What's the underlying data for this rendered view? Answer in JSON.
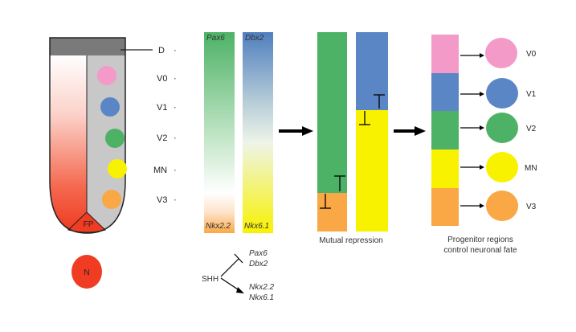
{
  "tube": {
    "labels": [
      "D",
      "V0",
      "V1",
      "V2",
      "MN",
      "V3"
    ],
    "floor_plate": "FP",
    "notochord": "N"
  },
  "gradient_bars": {
    "left_top": "Pax6",
    "left_bottom": "Nkx2.2",
    "right_top": "Dbx2",
    "right_bottom": "Nkx6.1"
  },
  "mutual_repression_caption": "Mutual repression",
  "shh": {
    "source": "SHH",
    "repressed": [
      "Pax6",
      "Dbx2"
    ],
    "induced": [
      "Nkx2.2",
      "Nkx6.1"
    ]
  },
  "progenitor": {
    "caption_line1": "Progenitor regions",
    "caption_line2": "control neuronal fate",
    "fates": [
      "V0",
      "V1",
      "V2",
      "MN",
      "V3"
    ]
  },
  "colors": {
    "pink": "#f49ac9",
    "blue": "#5a86c5",
    "green": "#4db266",
    "yellow": "#f8f200",
    "orange": "#f9a845",
    "red": "#ef3c22",
    "gray": "#c8c8c8",
    "dark_gray": "#7a7a7a"
  }
}
